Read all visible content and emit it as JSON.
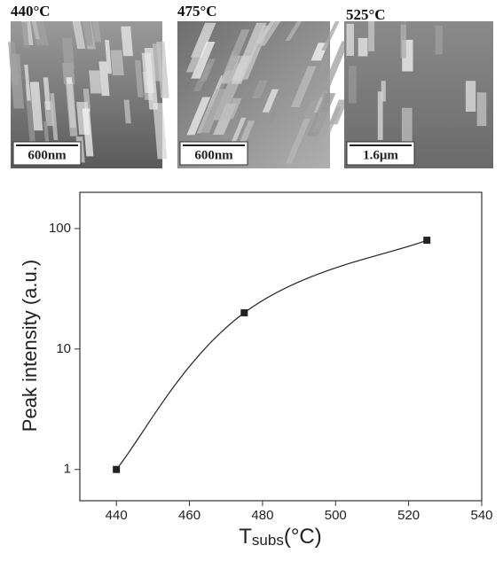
{
  "images": [
    {
      "label": "440°C",
      "scale_bar": "600nm"
    },
    {
      "label": "475°C",
      "scale_bar": "600nm"
    },
    {
      "label": "525°C",
      "scale_bar": "1.6μm"
    }
  ],
  "chart_data": {
    "type": "line",
    "y_label": "Peak intensity (a.u.)",
    "x_label": "T",
    "x_label_subscript": "subs",
    "x_label_unit": "(°C)",
    "x": [
      440,
      475,
      525
    ],
    "values": [
      1,
      20,
      80
    ],
    "color": "#222222",
    "markers": true,
    "log_y": true,
    "xlim": [
      430,
      540
    ],
    "xticks": [
      440,
      460,
      480,
      500,
      520,
      540
    ],
    "ylim": [
      0.55,
      200
    ],
    "yticks": [
      1,
      10,
      100
    ]
  }
}
